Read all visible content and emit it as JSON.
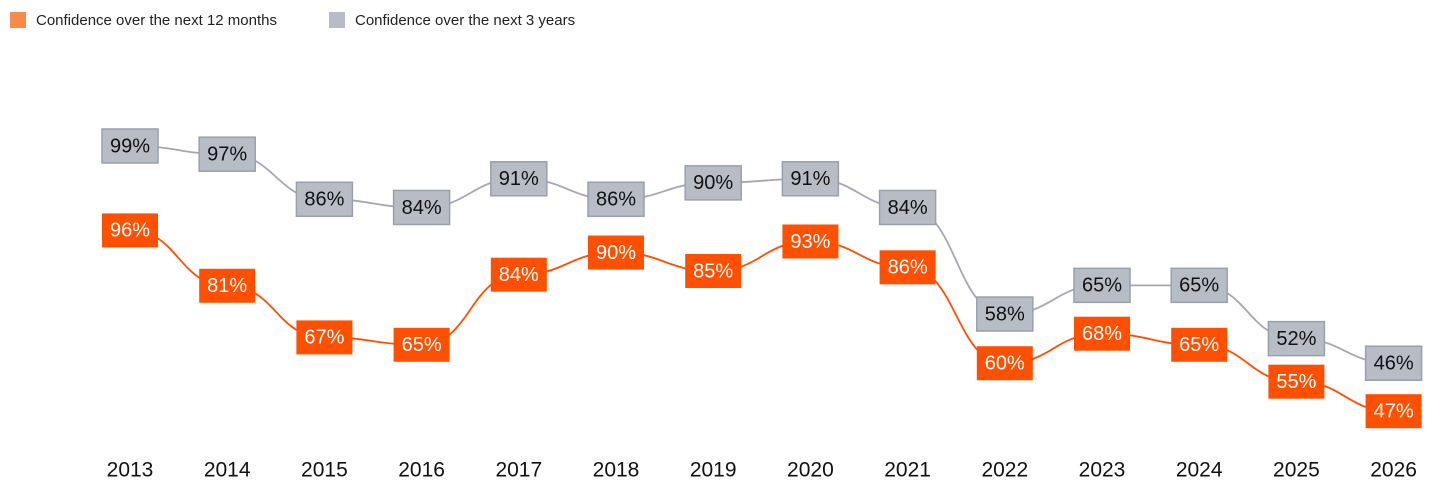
{
  "chart_data": {
    "type": "line",
    "categories": [
      "2013",
      "2014",
      "2015",
      "2016",
      "2017",
      "2018",
      "2019",
      "2020",
      "2021",
      "2022",
      "2023",
      "2024",
      "2025",
      "2026"
    ],
    "series": [
      {
        "name": "Confidence over the next 12 months",
        "color": "#fe5000",
        "legend_color": "#fb8a4a",
        "values": [
          96,
          81,
          67,
          65,
          84,
          90,
          85,
          93,
          86,
          60,
          68,
          65,
          55,
          47
        ],
        "value_labels": [
          "96%",
          "81%",
          "67%",
          "65%",
          "84%",
          "90%",
          "85%",
          "93%",
          "86%",
          "60%",
          "68%",
          "65%",
          "55%",
          "47%"
        ]
      },
      {
        "name": "Confidence over the next 3 years",
        "color": "#b8bcc5",
        "axis": "y2",
        "values": [
          99,
          97,
          86,
          84,
          91,
          86,
          90,
          91,
          84,
          58,
          65,
          65,
          52,
          46
        ],
        "value_labels": [
          "99%",
          "97%",
          "86%",
          "84%",
          "91%",
          "86%",
          "90%",
          "91%",
          "84%",
          "58%",
          "65%",
          "65%",
          "52%",
          "46%"
        ]
      }
    ],
    "ylim": [
      40,
      130
    ],
    "y2lim": [
      28,
      109
    ],
    "legend": "top-left"
  }
}
